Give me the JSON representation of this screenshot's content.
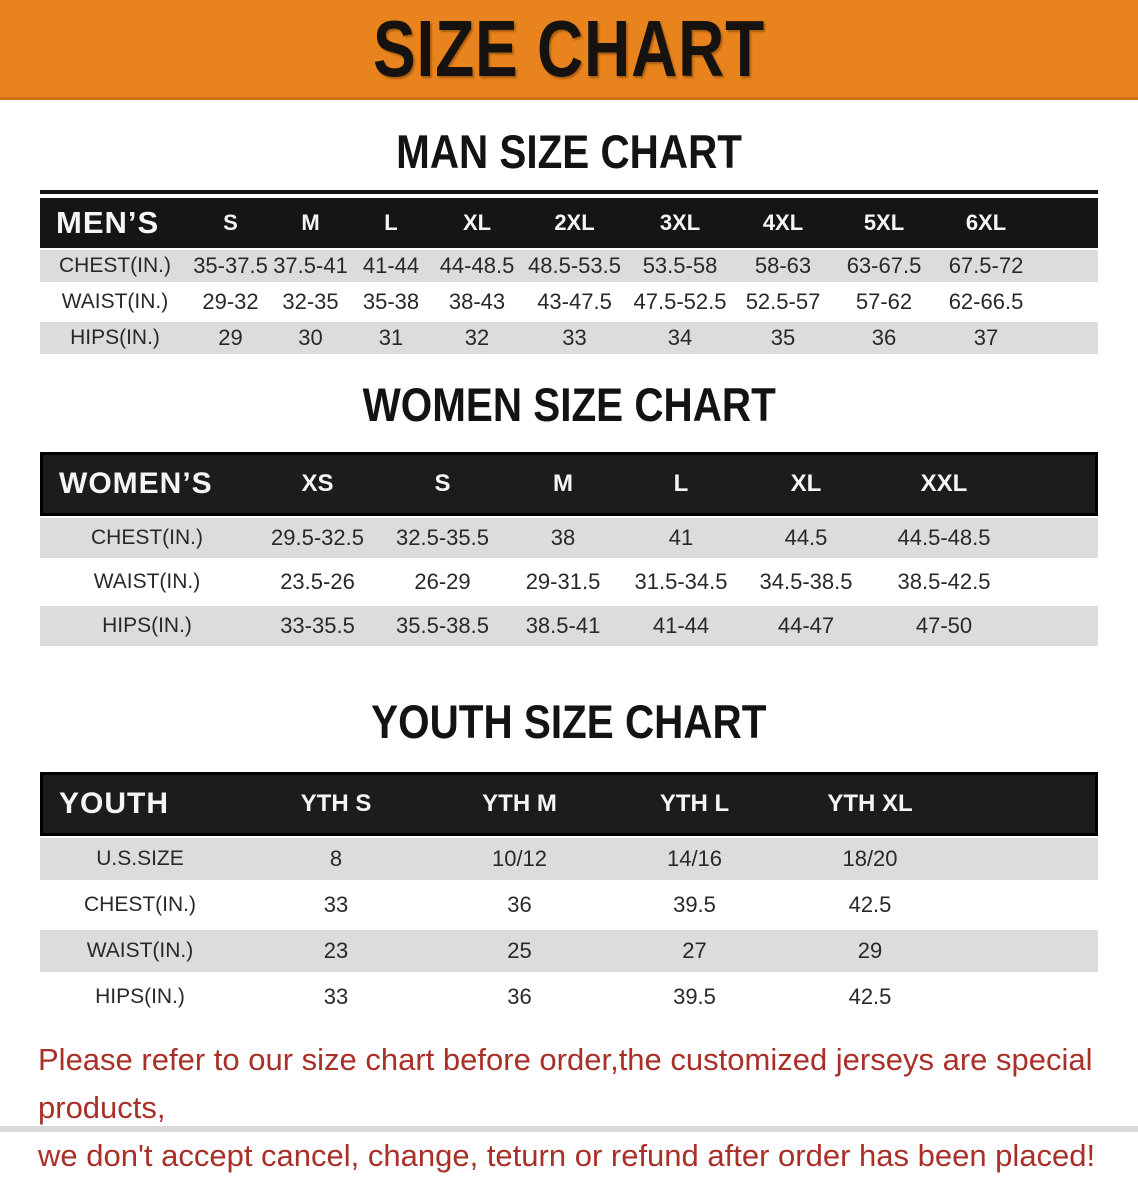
{
  "banner": {
    "title": "SIZE CHART",
    "bg_color": "#E8831D"
  },
  "sections": [
    {
      "heading": "MAN SIZE CHART",
      "table": {
        "corner": "MEN’S",
        "columns": [
          "S",
          "M",
          "L",
          "XL",
          "2XL",
          "3XL",
          "4XL",
          "5XL",
          "6XL"
        ],
        "rows": [
          {
            "label": "CHEST(IN.)",
            "values": [
              "35-37.5",
              "37.5-41",
              "41-44",
              "44-48.5",
              "48.5-53.5",
              "53.5-58",
              "58-63",
              "63-67.5",
              "67.5-72"
            ]
          },
          {
            "label": "WAIST(IN.)",
            "values": [
              "29-32",
              "32-35",
              "35-38",
              "38-43",
              "43-47.5",
              "47.5-52.5",
              "52.5-57",
              "57-62",
              "62-66.5"
            ]
          },
          {
            "label": "HIPS(IN.)",
            "values": [
              "29",
              "30",
              "31",
              "32",
              "33",
              "34",
              "35",
              "36",
              "37"
            ]
          }
        ]
      }
    },
    {
      "heading": "WOMEN SIZE CHART",
      "table": {
        "corner": "WOMEN’S",
        "columns": [
          "XS",
          "S",
          "M",
          "L",
          "XL",
          "XXL"
        ],
        "rows": [
          {
            "label": "CHEST(IN.)",
            "values": [
              "29.5-32.5",
              "32.5-35.5",
              "38",
              "41",
              "44.5",
              "44.5-48.5"
            ]
          },
          {
            "label": "WAIST(IN.)",
            "values": [
              "23.5-26",
              "26-29",
              "29-31.5",
              "31.5-34.5",
              "34.5-38.5",
              "38.5-42.5"
            ]
          },
          {
            "label": "HIPS(IN.)",
            "values": [
              "33-35.5",
              "35.5-38.5",
              "38.5-41",
              "41-44",
              "44-47",
              "47-50"
            ]
          }
        ]
      }
    },
    {
      "heading": "YOUTH SIZE CHART",
      "table": {
        "corner": "YOUTH",
        "columns": [
          "YTH S",
          "YTH M",
          "YTH L",
          "YTH XL"
        ],
        "rows": [
          {
            "label": "U.S.SIZE",
            "values": [
              "8",
              "10/12",
              "14/16",
              "18/20"
            ]
          },
          {
            "label": "CHEST(IN.)",
            "values": [
              "33",
              "36",
              "39.5",
              "42.5"
            ]
          },
          {
            "label": "WAIST(IN.)",
            "values": [
              "23",
              "25",
              "27",
              "29"
            ]
          },
          {
            "label": "HIPS(IN.)",
            "values": [
              "33",
              "36",
              "39.5",
              "42.5"
            ]
          }
        ]
      }
    }
  ],
  "disclaimer": {
    "line1": "Please refer to our size chart before order,the customized jerseys are special products,",
    "line2": "we don't accept cancel, change, teturn or refund after order has been placed!",
    "color": "#A93029"
  },
  "stripe_color": "#DCDCDC",
  "header_bar_color": "#1A1A1A"
}
